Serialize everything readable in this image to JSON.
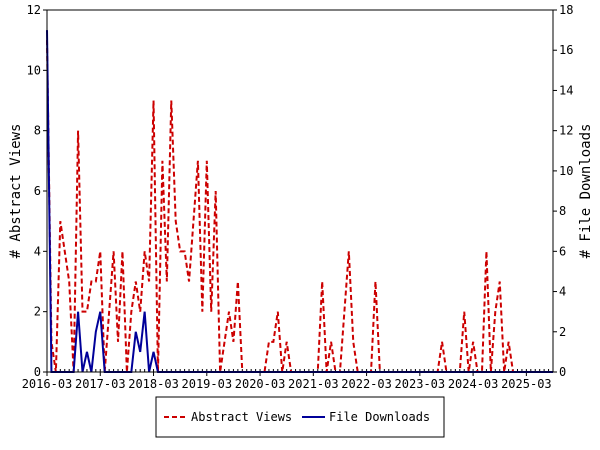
{
  "chart_data": {
    "type": "line",
    "ylabel": "# Abstract Views",
    "y2label": "# File Downloads",
    "ylim": [
      0,
      12
    ],
    "y2lim": [
      0,
      18
    ],
    "yticks": [
      "0",
      "2",
      "4",
      "6",
      "8",
      "10",
      "12"
    ],
    "y2ticks": [
      "0",
      "2",
      "4",
      "6",
      "8",
      "10",
      "12",
      "14",
      "16",
      "18"
    ],
    "x_start": "2016-03",
    "x_end": "2025-09",
    "xticks": [
      "2016-03",
      "2017-03",
      "2018-03",
      "2019-03",
      "2020-03",
      "2021-03",
      "2022-03",
      "2023-03",
      "2024-03",
      "2025-03"
    ],
    "legend_position": "bottom-center",
    "series": [
      {
        "name": "Abstract Views",
        "axis": "left",
        "color": "#cc0000",
        "style": "dashed",
        "x": [
          "2016-03",
          "2016-04",
          "2016-05",
          "2016-06",
          "2016-07",
          "2016-08",
          "2016-09",
          "2016-10",
          "2016-11",
          "2016-12",
          "2017-01",
          "2017-02",
          "2017-03",
          "2017-04",
          "2017-05",
          "2017-06",
          "2017-07",
          "2017-08",
          "2017-09",
          "2017-10",
          "2017-11",
          "2017-12",
          "2018-01",
          "2018-02",
          "2018-03",
          "2018-04",
          "2018-05",
          "2018-06",
          "2018-07",
          "2018-08",
          "2018-09",
          "2018-10",
          "2018-11",
          "2018-12",
          "2019-01",
          "2019-02",
          "2019-03",
          "2019-04",
          "2019-05",
          "2019-06",
          "2019-07",
          "2019-08",
          "2019-09",
          "2019-10",
          "2019-11",
          "2019-12",
          "2020-01",
          "2020-02",
          "2020-03",
          "2020-04",
          "2020-05",
          "2020-06",
          "2020-07",
          "2020-08",
          "2020-09",
          "2020-10",
          "2020-11",
          "2020-12",
          "2021-01",
          "2021-02",
          "2021-03",
          "2021-04",
          "2021-05",
          "2021-06",
          "2021-07",
          "2021-08",
          "2021-09",
          "2021-10",
          "2021-11",
          "2021-12",
          "2022-01",
          "2022-02",
          "2022-03",
          "2022-04",
          "2022-05",
          "2022-06",
          "2022-07",
          "2022-08",
          "2022-09",
          "2022-10",
          "2022-11",
          "2022-12",
          "2023-01",
          "2023-02",
          "2023-03",
          "2023-04",
          "2023-05",
          "2023-06",
          "2023-07",
          "2023-08",
          "2023-09",
          "2023-10",
          "2023-11",
          "2023-12",
          "2024-01",
          "2024-02",
          "2024-03",
          "2024-04",
          "2024-05",
          "2024-06",
          "2024-07",
          "2024-08",
          "2024-09",
          "2024-10",
          "2024-11",
          "2024-12",
          "2025-01",
          "2025-02",
          "2025-03",
          "2025-04",
          "2025-05",
          "2025-06",
          "2025-07",
          "2025-08",
          "2025-09"
        ],
        "values": [
          11,
          1,
          0,
          5,
          4,
          3,
          0,
          8,
          2,
          2,
          3,
          3,
          4,
          0,
          2,
          4,
          1,
          4,
          0,
          2,
          3,
          2,
          4,
          3,
          9,
          0,
          7,
          3,
          9,
          5,
          4,
          4,
          3,
          5,
          7,
          2,
          7,
          2,
          6,
          0,
          1,
          2,
          1,
          3,
          0,
          0,
          0,
          0,
          0,
          0,
          1,
          1,
          2,
          0,
          1,
          0,
          0,
          0,
          0,
          0,
          0,
          0,
          3,
          0,
          1,
          0,
          0,
          2,
          4,
          1,
          0,
          0,
          0,
          0,
          3,
          0,
          0,
          0,
          0,
          0,
          0,
          0,
          0,
          0,
          0,
          0,
          0,
          0,
          0,
          1,
          0,
          0,
          0,
          0,
          2,
          0,
          1,
          0,
          0,
          4,
          0,
          2,
          3,
          0,
          1,
          0,
          0,
          0,
          0,
          0,
          0,
          0,
          0,
          0,
          0
        ]
      },
      {
        "name": "File Downloads",
        "axis": "right",
        "color": "#000099",
        "style": "solid",
        "x": [
          "2016-03",
          "2016-04",
          "2016-05",
          "2016-06",
          "2016-07",
          "2016-08",
          "2016-09",
          "2016-10",
          "2016-11",
          "2016-12",
          "2017-01",
          "2017-02",
          "2017-03",
          "2017-04",
          "2017-05",
          "2017-06",
          "2017-07",
          "2017-08",
          "2017-09",
          "2017-10",
          "2017-11",
          "2017-12",
          "2018-01",
          "2018-02",
          "2018-03",
          "2018-04",
          "2018-05",
          "2018-06",
          "2018-07",
          "2018-08",
          "2018-09",
          "2018-10",
          "2018-11",
          "2018-12",
          "2019-01",
          "2019-02",
          "2019-03",
          "2019-04",
          "2019-05",
          "2019-06",
          "2019-07",
          "2019-08",
          "2019-09",
          "2019-10",
          "2019-11",
          "2019-12",
          "2020-01",
          "2020-02",
          "2020-03",
          "2020-04",
          "2020-05",
          "2020-06",
          "2020-07",
          "2020-08",
          "2020-09",
          "2020-10",
          "2020-11",
          "2020-12",
          "2021-01",
          "2021-02",
          "2021-03",
          "2021-04",
          "2021-05",
          "2021-06",
          "2021-07",
          "2021-08",
          "2021-09",
          "2021-10",
          "2021-11",
          "2021-12",
          "2022-01",
          "2022-02",
          "2022-03",
          "2022-04",
          "2022-05",
          "2022-06",
          "2022-07",
          "2022-08",
          "2022-09",
          "2022-10",
          "2022-11",
          "2022-12",
          "2023-01",
          "2023-02",
          "2023-03",
          "2023-04",
          "2023-05",
          "2023-06",
          "2023-07",
          "2023-08",
          "2023-09",
          "2023-10",
          "2023-11",
          "2023-12",
          "2024-01",
          "2024-02",
          "2024-03",
          "2024-04",
          "2024-05",
          "2024-06",
          "2024-07",
          "2024-08",
          "2024-09",
          "2024-10",
          "2024-11",
          "2024-12",
          "2025-01",
          "2025-02",
          "2025-03",
          "2025-04",
          "2025-05",
          "2025-06",
          "2025-07",
          "2025-08",
          "2025-09"
        ],
        "values": [
          17,
          0,
          0,
          0,
          0,
          0,
          0,
          3,
          0,
          1,
          0,
          2,
          3,
          0,
          0,
          0,
          0,
          0,
          0,
          0,
          2,
          1,
          3,
          0,
          1,
          0,
          0,
          0,
          0,
          0,
          0,
          0,
          0,
          0,
          0,
          0,
          0,
          0,
          0,
          0,
          0,
          0,
          0,
          0,
          0,
          0,
          0,
          0,
          0,
          0,
          0,
          0,
          0,
          0,
          0,
          0,
          0,
          0,
          0,
          0,
          0,
          0,
          0,
          0,
          0,
          0,
          0,
          0,
          0,
          0,
          0,
          0,
          0,
          0,
          0,
          0,
          0,
          0,
          0,
          0,
          0,
          0,
          0,
          0,
          0,
          0,
          0,
          0,
          0,
          0,
          0,
          0,
          0,
          0,
          0,
          0,
          0,
          0,
          0,
          0,
          0,
          0,
          0,
          0,
          0,
          0,
          0,
          0,
          0,
          0,
          0,
          0,
          0,
          0,
          0
        ]
      }
    ]
  }
}
